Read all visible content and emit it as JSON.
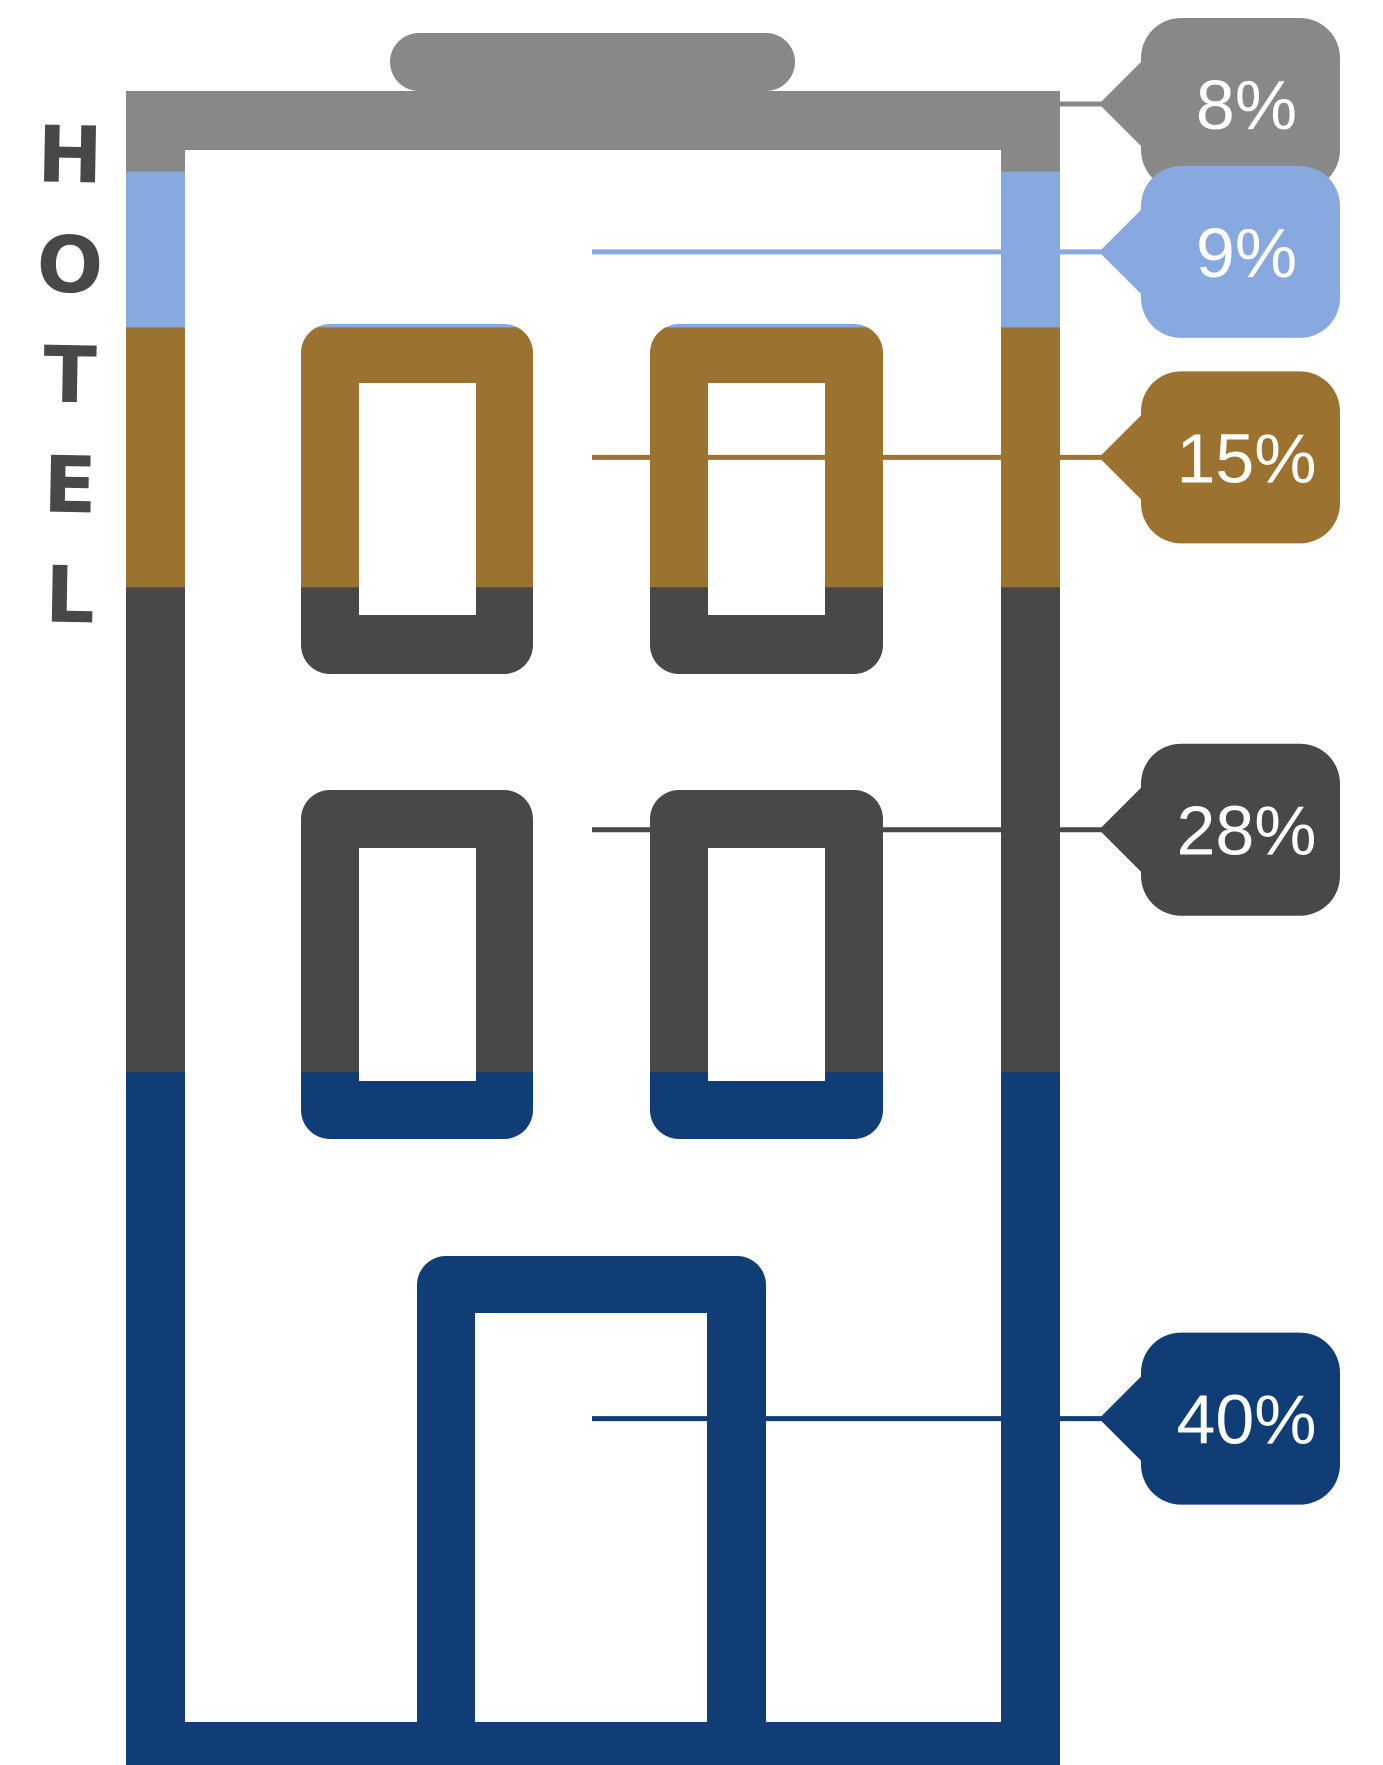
{
  "chart_data": {
    "type": "pictograph-stacked-bar",
    "word": "HOTEL",
    "segments": [
      {
        "value": 8,
        "label": "8%",
        "color": "#888888"
      },
      {
        "value": 9,
        "label": "9%",
        "color": "#88A8E0"
      },
      {
        "value": 15,
        "label": "15%",
        "color": "#9B7230"
      },
      {
        "value": 28,
        "label": "28%",
        "color": "#484848"
      },
      {
        "value": 40,
        "label": "40%",
        "color": "#113D76"
      }
    ]
  }
}
